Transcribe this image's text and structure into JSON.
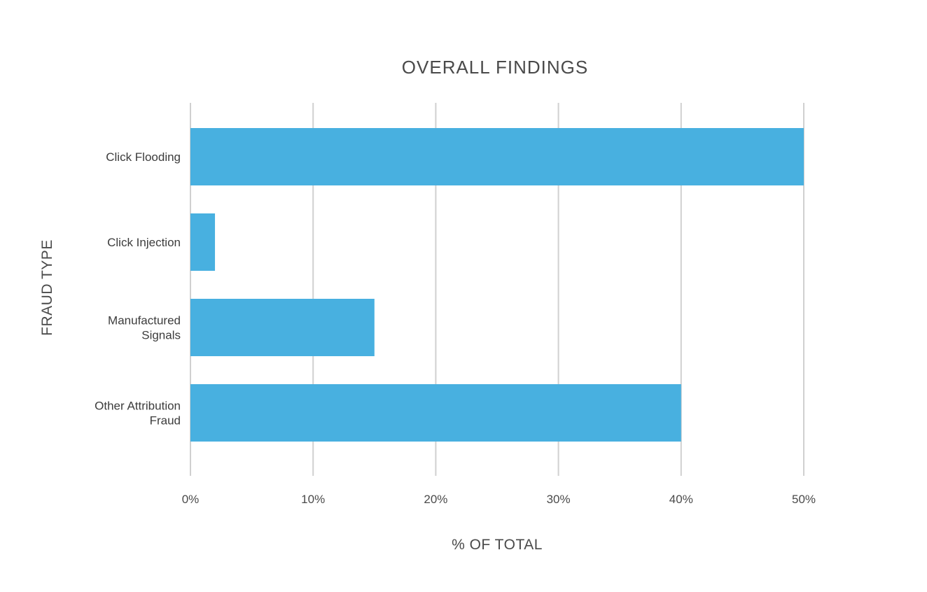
{
  "chart_data": {
    "type": "bar",
    "orientation": "horizontal",
    "title": "OVERALL FINDINGS",
    "xlabel": "% OF TOTAL",
    "ylabel": "FRAUD TYPE",
    "categories": [
      [
        "Click Flooding"
      ],
      [
        "Click Injection"
      ],
      [
        "Manufactured",
        "Signals"
      ],
      [
        "Other Attribution",
        "Fraud"
      ]
    ],
    "values": [
      50,
      2,
      15,
      40
    ],
    "xlim": [
      0,
      50
    ],
    "xticks": [
      0,
      10,
      20,
      30,
      40,
      50
    ],
    "tick_labels": [
      "0%",
      "10%",
      "20%",
      "30%",
      "40%",
      "50%"
    ],
    "grid": true,
    "legend": "none",
    "bar_color": "#48b0e0"
  }
}
